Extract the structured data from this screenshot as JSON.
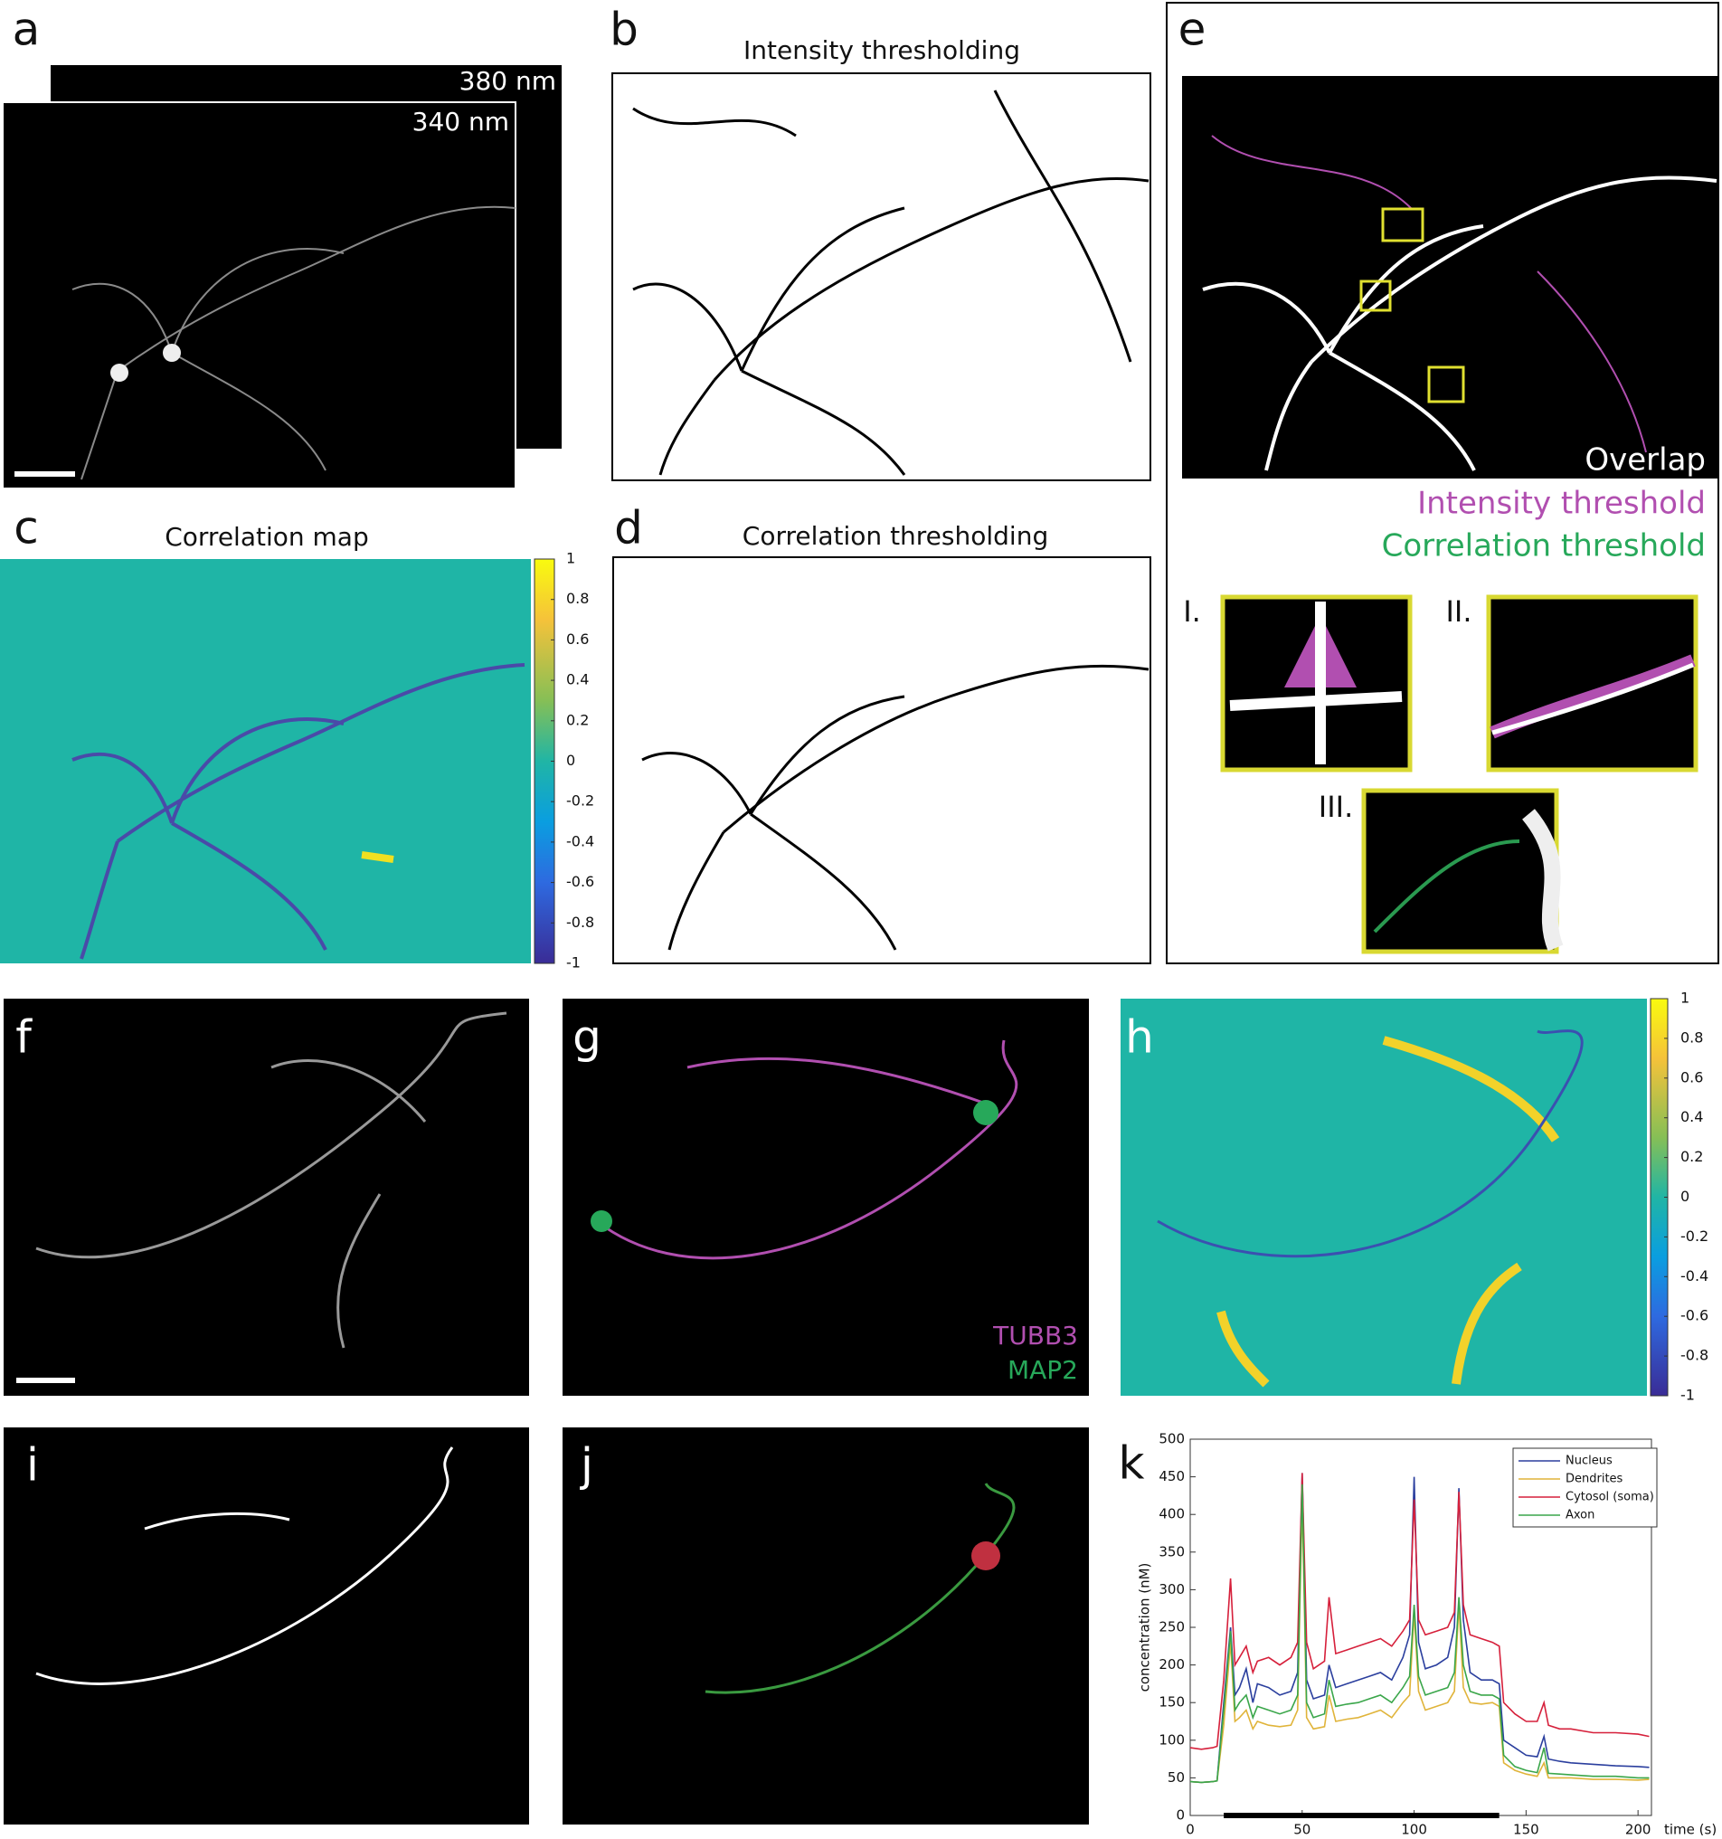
{
  "panels": {
    "a": {
      "label": "a",
      "stack_labels": [
        "380 nm",
        "340 nm"
      ]
    },
    "b": {
      "label": "b",
      "title": "Intensity thresholding"
    },
    "c": {
      "label": "c",
      "title": "Correlation map",
      "colorbar": {
        "lim": [
          -1,
          1
        ],
        "ticks": [
          1,
          0.8,
          0.6,
          0.4,
          0.2,
          0,
          -0.2,
          -0.4,
          -0.6,
          -0.8,
          -1
        ]
      }
    },
    "d": {
      "label": "d",
      "title": "Correlation thresholding"
    },
    "e": {
      "label": "e",
      "legend": [
        {
          "text": "Overlap",
          "color": "#ffffff"
        },
        {
          "text": "Intensity threshold",
          "color": "#b14fb0"
        },
        {
          "text": "Correlation threshold",
          "color": "#27a85a"
        }
      ],
      "insets": [
        "I.",
        "II.",
        "III."
      ]
    },
    "f": {
      "label": "f"
    },
    "g": {
      "label": "g",
      "channels": [
        {
          "text": "TUBB3",
          "color": "#b14fb0"
        },
        {
          "text": "MAP2",
          "color": "#27a85a"
        }
      ]
    },
    "h": {
      "label": "h",
      "colorbar": {
        "lim": [
          -1,
          1
        ],
        "ticks": [
          1,
          0.8,
          0.6,
          0.4,
          0.2,
          0,
          -0.2,
          -0.4,
          -0.6,
          -0.8,
          -1
        ]
      }
    },
    "i": {
      "label": "i"
    },
    "j": {
      "label": "j"
    },
    "k": {
      "label": "k"
    }
  },
  "chart_data": {
    "type": "line",
    "xlabel": "time (s)",
    "ylabel": "concentration (nM)",
    "x": [
      0,
      5,
      10,
      12,
      15,
      18,
      20,
      22,
      25,
      28,
      30,
      35,
      40,
      45,
      48,
      50,
      52,
      55,
      60,
      62,
      65,
      70,
      75,
      80,
      85,
      90,
      95,
      98,
      100,
      102,
      105,
      110,
      115,
      118,
      120,
      122,
      125,
      130,
      135,
      138,
      140,
      145,
      150,
      155,
      158,
      160,
      165,
      170,
      180,
      190,
      200,
      205
    ],
    "series": [
      {
        "name": "Nucleus",
        "color": "#2b3f9e",
        "values": [
          45,
          44,
          45,
          46,
          150,
          250,
          160,
          170,
          195,
          150,
          175,
          170,
          160,
          165,
          190,
          455,
          180,
          155,
          160,
          200,
          170,
          175,
          180,
          185,
          190,
          180,
          210,
          240,
          450,
          230,
          195,
          200,
          210,
          250,
          435,
          260,
          190,
          180,
          180,
          175,
          100,
          90,
          80,
          78,
          105,
          75,
          72,
          70,
          68,
          66,
          65,
          64
        ]
      },
      {
        "name": "Dendrites",
        "color": "#e0b43a",
        "values": [
          45,
          44,
          45,
          46,
          120,
          230,
          125,
          130,
          140,
          115,
          125,
          120,
          118,
          120,
          140,
          420,
          130,
          115,
          118,
          160,
          125,
          128,
          130,
          135,
          140,
          130,
          150,
          160,
          270,
          165,
          140,
          145,
          150,
          165,
          280,
          170,
          150,
          148,
          150,
          145,
          70,
          60,
          55,
          52,
          70,
          50,
          50,
          50,
          48,
          48,
          47,
          48
        ]
      },
      {
        "name": "Cytosol (soma)",
        "color": "#d6203b",
        "values": [
          90,
          88,
          90,
          92,
          180,
          315,
          200,
          210,
          225,
          190,
          205,
          210,
          200,
          210,
          230,
          455,
          230,
          195,
          205,
          290,
          215,
          220,
          225,
          230,
          235,
          225,
          245,
          260,
          420,
          260,
          240,
          245,
          250,
          270,
          430,
          280,
          240,
          235,
          230,
          225,
          150,
          135,
          125,
          125,
          150,
          120,
          115,
          115,
          110,
          110,
          108,
          105
        ]
      },
      {
        "name": "Axon",
        "color": "#3aa64a",
        "values": [
          45,
          44,
          45,
          46,
          140,
          245,
          140,
          150,
          160,
          130,
          145,
          140,
          135,
          140,
          160,
          440,
          150,
          130,
          135,
          180,
          145,
          148,
          150,
          155,
          160,
          150,
          170,
          185,
          280,
          185,
          160,
          165,
          170,
          190,
          290,
          200,
          165,
          160,
          160,
          155,
          80,
          65,
          60,
          57,
          90,
          56,
          55,
          54,
          52,
          52,
          50,
          50
        ]
      }
    ],
    "span": [
      15,
      138
    ],
    "xlim": [
      0,
      206
    ],
    "ylim": [
      0,
      500
    ],
    "xticks": [
      0,
      50,
      100,
      150,
      200
    ],
    "yticks": [
      0,
      50,
      100,
      150,
      200,
      250,
      300,
      350,
      400,
      450,
      500
    ]
  }
}
